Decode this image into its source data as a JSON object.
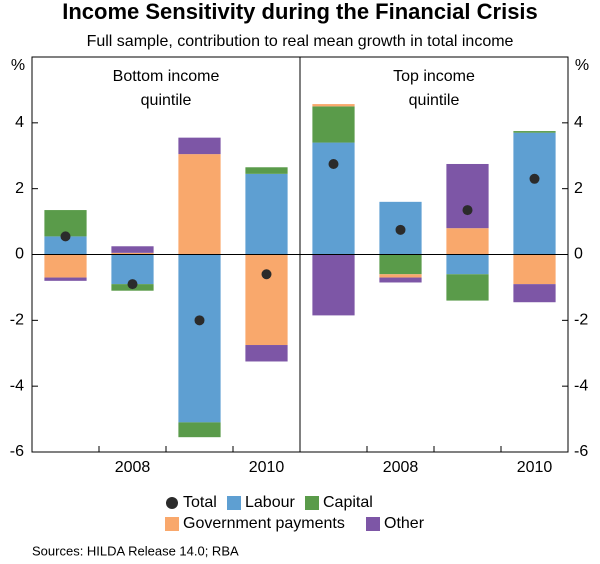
{
  "chart_data": {
    "type": "stacked-bar",
    "title": "Income Sensitivity during the Financial Crisis",
    "subtitle": "Full sample, contribution to real mean growth in total income",
    "y_unit": "%",
    "source": "Sources:  HILDA Release 14.0; RBA",
    "panels": [
      {
        "title": [
          "Bottom income",
          "quintile"
        ]
      },
      {
        "title": [
          "Top income",
          "quintile"
        ]
      }
    ],
    "categories": [
      null,
      "2008",
      null,
      "2010",
      null,
      "2008",
      null,
      "2010"
    ],
    "ylim": [
      -6,
      6
    ],
    "yticks": [
      -6,
      -4,
      -2,
      0,
      2,
      4
    ],
    "series": [
      {
        "name": "Total",
        "type": "dot",
        "color": "#2b2b2b",
        "values": [
          0.55,
          -0.9,
          -2.0,
          -0.6,
          2.75,
          0.75,
          1.35,
          2.3
        ]
      },
      {
        "name": "Labour",
        "color": "#5e9fd2",
        "values": [
          0.55,
          -0.9,
          -5.1,
          2.45,
          3.4,
          1.6,
          -0.6,
          3.7
        ]
      },
      {
        "name": "Capital",
        "color": "#5a9b4a",
        "values": [
          0.8,
          -0.2,
          -0.45,
          0.2,
          1.1,
          -0.6,
          -0.8,
          0.05
        ]
      },
      {
        "name": "Government payments",
        "color": "#f9a86c",
        "values": [
          -0.7,
          0.05,
          3.05,
          -2.75,
          0.07,
          -0.1,
          0.8,
          -0.9
        ]
      },
      {
        "name": "Other",
        "color": "#7d56a6",
        "values": [
          -0.1,
          0.2,
          0.5,
          -0.5,
          -1.85,
          -0.15,
          1.95,
          -0.55
        ]
      }
    ]
  }
}
